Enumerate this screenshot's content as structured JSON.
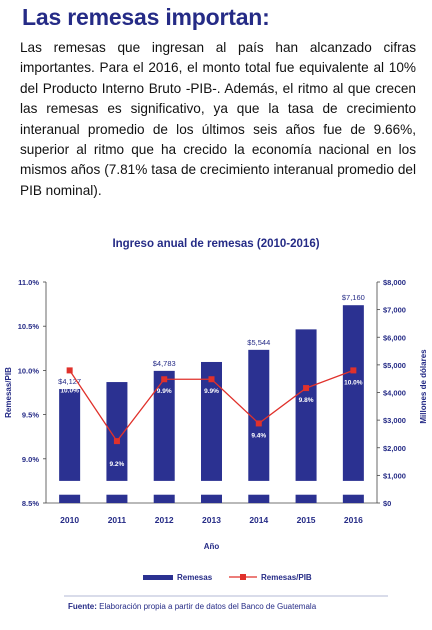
{
  "heading": "Las remesas importan:",
  "paragraph": "Las remesas que ingresan al país han alcanzado cifras importantes. Para el 2016, el monto total fue equivalente al 10% del Producto Interno Bruto -PIB-. Además, el ritmo al que crecen las remesas es significativo, ya que la tasa de crecimiento interanual promedio de los últimos seis años fue de 9.66%, superior al ritmo que ha crecido la economía nacional en los mismos años (7.81% tasa de crecimiento interanual promedio del PIB nominal).",
  "source_label": "Fuente:",
  "source_text": " Elaboración propia a partir de datos del Banco de Guatemala",
  "chart_data": {
    "type": "bar",
    "title": "Ingreso anual de remesas (2010-2016)",
    "xlabel": "Año",
    "ylabel_left": "Remesas/PIB",
    "ylabel_right": "Millones de dólares",
    "categories": [
      "2010",
      "2011",
      "2012",
      "2013",
      "2014",
      "2015",
      "2016"
    ],
    "left_axis": {
      "min": 8.5,
      "max": 11.0,
      "ticks": [
        "8.5%",
        "9.0%",
        "9.5%",
        "10.0%",
        "10.5%",
        "11.0%"
      ]
    },
    "right_axis": {
      "min": 0,
      "max": 8000,
      "ticks": [
        "$0",
        "$1,000",
        "$2,000",
        "$3,000",
        "$4,000",
        "$5,000",
        "$6,000",
        "$7,000",
        "$8,000"
      ]
    },
    "series": [
      {
        "name": "Remesas",
        "kind": "bar",
        "axis": "right",
        "color": "#2b3191",
        "values": [
          4127,
          4378,
          4783,
          5105,
          5544,
          6285,
          7160
        ],
        "data_labels": [
          "$4,127",
          "",
          "$4,783",
          "",
          "$5,544",
          "",
          "$7,160"
        ]
      },
      {
        "name": "Remesas/PIB",
        "kind": "line",
        "axis": "left",
        "color": "#e0312b",
        "values": [
          10.0,
          9.2,
          9.9,
          9.9,
          9.4,
          9.8,
          10.0
        ],
        "data_labels": [
          "10.0%",
          "9.2%",
          "9.9%",
          "9.9%",
          "9.4%",
          "9.8%",
          "10.0%"
        ]
      }
    ],
    "legend_position": "bottom",
    "grid": false
  }
}
